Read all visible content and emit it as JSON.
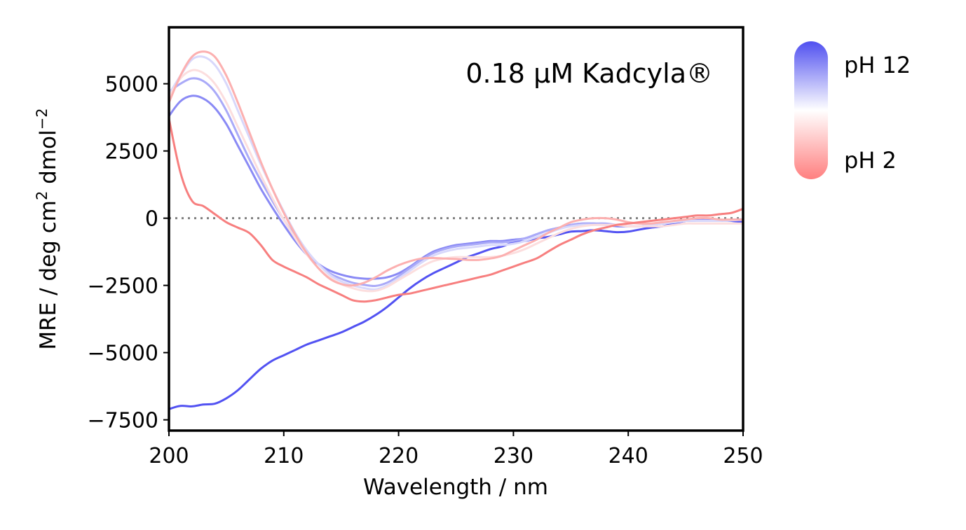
{
  "chart_data": {
    "type": "line",
    "annotation": "0.18 μM Kadcyla®",
    "xlabel": "Wavelength / nm",
    "ylabel_main": "MRE / deg cm",
    "ylabel_sup1": "2",
    "ylabel_mid": " dmol",
    "ylabel_sup2": "−2",
    "xlim": [
      200,
      250
    ],
    "ylim": [
      -7900,
      7100
    ],
    "x_ticks": [
      200,
      210,
      220,
      230,
      240,
      250
    ],
    "x_tick_labels": [
      "200",
      "210",
      "220",
      "230",
      "240",
      "250"
    ],
    "y_ticks": [
      5000,
      2500,
      0,
      -2500,
      -5000,
      -7500
    ],
    "y_tick_labels": [
      "5000",
      "2500",
      "0",
      "−2500",
      "−5000",
      "−7500"
    ],
    "reference_line": {
      "y": 0,
      "style": "dotted",
      "color": "#808080"
    },
    "legend": {
      "type": "colorbar",
      "top_label": "pH 12",
      "bottom_label": "pH 2",
      "colors": [
        "#5050f0",
        "#ffffff",
        "#ff7f7f"
      ]
    },
    "series": [
      {
        "color": "#5252f2",
        "x": [
          200,
          201,
          202,
          203,
          204,
          205,
          206,
          207,
          208,
          209,
          210,
          211,
          212,
          213,
          214,
          215,
          216,
          217,
          218,
          219,
          220,
          221,
          222,
          223,
          224,
          225,
          226,
          227,
          228,
          229,
          230,
          231,
          232,
          233,
          234,
          235,
          236,
          237,
          238,
          239,
          240,
          241,
          242,
          243,
          244,
          245,
          246,
          247,
          248,
          249,
          250
        ],
        "y": [
          -7100,
          -6980,
          -7000,
          -6930,
          -6900,
          -6700,
          -6400,
          -6000,
          -5600,
          -5300,
          -5100,
          -4900,
          -4700,
          -4550,
          -4400,
          -4250,
          -4050,
          -3850,
          -3600,
          -3300,
          -2950,
          -2600,
          -2300,
          -2050,
          -1850,
          -1650,
          -1450,
          -1300,
          -1150,
          -1050,
          -900,
          -850,
          -750,
          -700,
          -600,
          -500,
          -480,
          -450,
          -480,
          -520,
          -500,
          -420,
          -350,
          -300,
          -200,
          -100,
          -50,
          -60,
          -80,
          -100,
          -150
        ]
      },
      {
        "color": "#8a8af5",
        "x": [
          200,
          201,
          202,
          203,
          204,
          205,
          206,
          207,
          208,
          209,
          210,
          211,
          212,
          213,
          214,
          215,
          216,
          217,
          218,
          219,
          220,
          221,
          222,
          223,
          224,
          225,
          226,
          227,
          228,
          229,
          230,
          231,
          232,
          233,
          234,
          235,
          236,
          237,
          238,
          239,
          240,
          241,
          242,
          243,
          244,
          245,
          246,
          247,
          248,
          249,
          250
        ],
        "y": [
          3800,
          4350,
          4550,
          4450,
          4100,
          3500,
          2700,
          1900,
          1100,
          400,
          -250,
          -850,
          -1350,
          -1700,
          -1950,
          -2100,
          -2200,
          -2250,
          -2250,
          -2200,
          -2050,
          -1800,
          -1500,
          -1250,
          -1100,
          -1000,
          -950,
          -900,
          -850,
          -850,
          -800,
          -750,
          -600,
          -450,
          -350,
          -250,
          -200,
          -200,
          -250,
          -300,
          -300,
          -300,
          -250,
          -200,
          -150,
          -100,
          -100,
          -100,
          -100,
          -80,
          -50
        ]
      },
      {
        "color": "#aaaaf8",
        "x": [
          200,
          201,
          202,
          203,
          204,
          205,
          206,
          207,
          208,
          209,
          210,
          211,
          212,
          213,
          214,
          215,
          216,
          217,
          218,
          219,
          220,
          221,
          222,
          223,
          224,
          225,
          226,
          227,
          228,
          229,
          230,
          231,
          232,
          233,
          234,
          235,
          236,
          237,
          238,
          239,
          240,
          241,
          242,
          243,
          244,
          245,
          246,
          247,
          248,
          249,
          250
        ],
        "y": [
          4700,
          5000,
          5200,
          5100,
          4700,
          4000,
          3100,
          2200,
          1400,
          650,
          -50,
          -700,
          -1250,
          -1700,
          -2050,
          -2250,
          -2400,
          -2480,
          -2520,
          -2400,
          -2150,
          -1850,
          -1550,
          -1300,
          -1150,
          -1050,
          -1000,
          -950,
          -900,
          -900,
          -850,
          -750,
          -600,
          -450,
          -350,
          -250,
          -200,
          -200,
          -200,
          -250,
          -300,
          -300,
          -250,
          -200,
          -150,
          -100,
          -80,
          -80,
          -80,
          -60,
          -40
        ]
      },
      {
        "color": "#d8d8fb",
        "x": [
          200,
          201,
          202,
          203,
          204,
          205,
          206,
          207,
          208,
          209,
          210,
          211,
          212,
          213,
          214,
          215,
          216,
          217,
          218,
          219,
          220,
          221,
          222,
          223,
          224,
          225,
          226,
          227,
          228,
          229,
          230,
          231,
          232,
          233,
          234,
          235,
          236,
          237,
          238,
          239,
          240,
          241,
          242,
          243,
          244,
          245,
          246,
          247,
          248,
          249,
          250
        ],
        "y": [
          4600,
          5300,
          5900,
          6000,
          5700,
          5000,
          4000,
          3000,
          2000,
          1100,
          250,
          -550,
          -1200,
          -1700,
          -2100,
          -2350,
          -2500,
          -2600,
          -2650,
          -2500,
          -2250,
          -1950,
          -1650,
          -1400,
          -1250,
          -1150,
          -1100,
          -1050,
          -1000,
          -1000,
          -950,
          -850,
          -700,
          -550,
          -400,
          -300,
          -250,
          -250,
          -250,
          -250,
          -300,
          -300,
          -250,
          -200,
          -150,
          -100,
          -100,
          -100,
          -100,
          -80,
          -60
        ]
      },
      {
        "color": "#fcdede",
        "x": [
          200,
          201,
          202,
          203,
          204,
          205,
          206,
          207,
          208,
          209,
          210,
          211,
          212,
          213,
          214,
          215,
          216,
          217,
          218,
          219,
          220,
          221,
          222,
          223,
          224,
          225,
          226,
          227,
          228,
          229,
          230,
          231,
          232,
          233,
          234,
          235,
          236,
          237,
          238,
          239,
          240,
          241,
          242,
          243,
          244,
          245,
          246,
          247,
          248,
          249,
          250
        ],
        "y": [
          4500,
          5200,
          5500,
          5400,
          5000,
          4300,
          3400,
          2500,
          1600,
          750,
          -50,
          -750,
          -1350,
          -1850,
          -2200,
          -2450,
          -2600,
          -2700,
          -2700,
          -2550,
          -2300,
          -2050,
          -1800,
          -1600,
          -1500,
          -1450,
          -1450,
          -1450,
          -1450,
          -1400,
          -1300,
          -1150,
          -950,
          -750,
          -550,
          -400,
          -300,
          -250,
          -250,
          -250,
          -300,
          -300,
          -300,
          -300,
          -250,
          -200,
          -200,
          -200,
          -200,
          -200,
          -200
        ]
      },
      {
        "color": "#fcb0b0",
        "x": [
          200,
          201,
          202,
          203,
          204,
          205,
          206,
          207,
          208,
          209,
          210,
          211,
          212,
          213,
          214,
          215,
          216,
          217,
          218,
          219,
          220,
          221,
          222,
          223,
          224,
          225,
          226,
          227,
          228,
          229,
          230,
          231,
          232,
          233,
          234,
          235,
          236,
          237,
          238,
          239,
          240,
          241,
          242,
          243,
          244,
          245,
          246,
          247,
          248,
          249,
          250
        ],
        "y": [
          4300,
          5300,
          6000,
          6200,
          6000,
          5300,
          4300,
          3200,
          2100,
          1100,
          200,
          -600,
          -1300,
          -1850,
          -2250,
          -2450,
          -2500,
          -2400,
          -2200,
          -1950,
          -1750,
          -1600,
          -1500,
          -1480,
          -1500,
          -1520,
          -1550,
          -1550,
          -1500,
          -1400,
          -1200,
          -1000,
          -800,
          -550,
          -350,
          -150,
          -50,
          0,
          0,
          -50,
          -150,
          -200,
          -200,
          -150,
          -100,
          -50,
          0,
          0,
          -50,
          -50,
          -50
        ]
      },
      {
        "color": "#f77f7f",
        "x": [
          200,
          201,
          202,
          203,
          204,
          205,
          206,
          207,
          208,
          209,
          210,
          211,
          212,
          213,
          214,
          215,
          216,
          217,
          218,
          219,
          220,
          221,
          222,
          223,
          224,
          225,
          226,
          227,
          228,
          229,
          230,
          231,
          232,
          233,
          234,
          235,
          236,
          237,
          238,
          239,
          240,
          241,
          242,
          243,
          244,
          245,
          246,
          247,
          248,
          249,
          250
        ],
        "y": [
          3700,
          1700,
          650,
          450,
          150,
          -150,
          -350,
          -550,
          -1000,
          -1550,
          -1800,
          -2000,
          -2200,
          -2450,
          -2650,
          -2850,
          -3050,
          -3100,
          -3050,
          -2950,
          -2850,
          -2800,
          -2700,
          -2600,
          -2500,
          -2400,
          -2300,
          -2200,
          -2100,
          -1950,
          -1800,
          -1650,
          -1500,
          -1250,
          -1000,
          -800,
          -600,
          -450,
          -350,
          -250,
          -200,
          -150,
          -100,
          -50,
          0,
          50,
          100,
          100,
          150,
          200,
          350
        ]
      }
    ]
  }
}
